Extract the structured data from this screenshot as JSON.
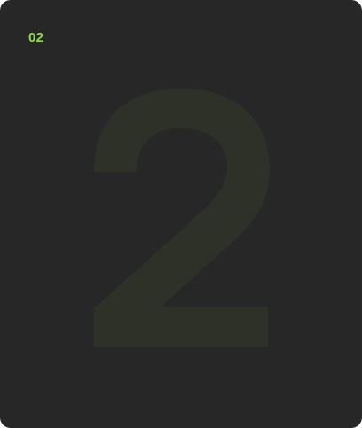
{
  "card": {
    "step_label": "02",
    "background_digit": "2",
    "colors": {
      "card_background": "#272727",
      "accent": "#8fe03a",
      "digit_tint": "#2d3128"
    }
  }
}
